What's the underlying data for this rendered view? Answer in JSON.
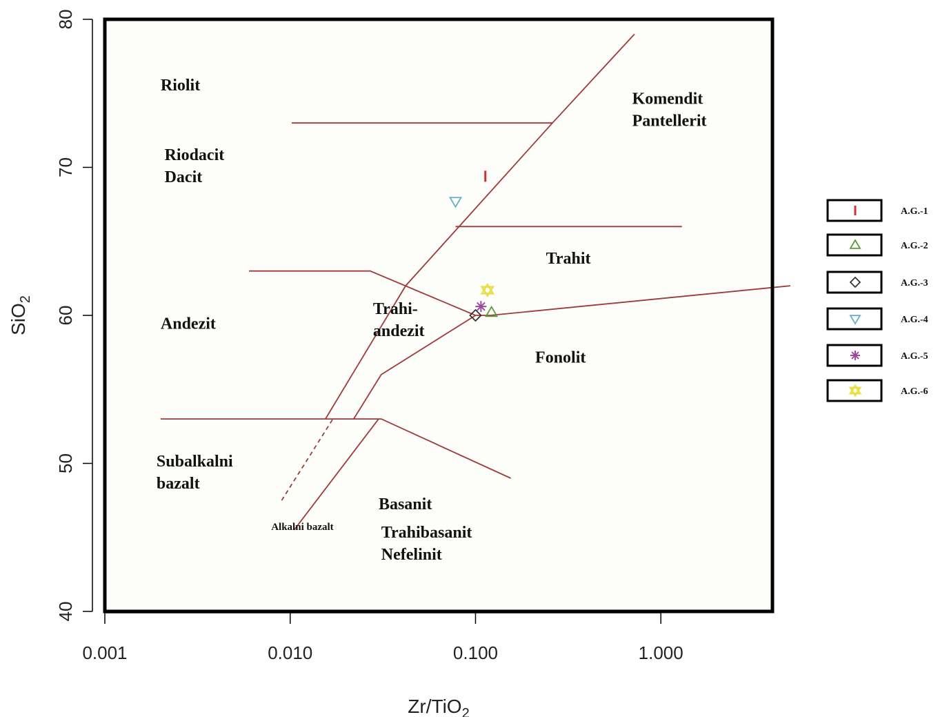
{
  "chart_data": {
    "type": "scatter",
    "title": "",
    "xlabel": "Zr/TiO",
    "xlabel_sub": "2",
    "ylabel": "SiO",
    "ylabel_sub": "2",
    "xscale": "log",
    "xlim": [
      0.001,
      4.0
    ],
    "ylim": [
      40,
      80
    ],
    "x_ticks": [
      {
        "value": 0.001,
        "label": "0.001"
      },
      {
        "value": 0.01,
        "label": "0.010"
      },
      {
        "value": 0.1,
        "label": "0.100"
      },
      {
        "value": 1.0,
        "label": "1.000"
      }
    ],
    "y_ticks": [
      {
        "value": 40,
        "label": "40"
      },
      {
        "value": 50,
        "label": "50"
      },
      {
        "value": 60,
        "label": "60"
      },
      {
        "value": 70,
        "label": "70"
      },
      {
        "value": 80,
        "label": "80"
      }
    ],
    "grid": false,
    "legend_position": "right",
    "line_color": "#9e3a3a",
    "field_boundaries": [
      {
        "style": "solid",
        "points": [
          [
            0.0102,
            73
          ],
          [
            0.26,
            73
          ]
        ]
      },
      {
        "style": "solid",
        "points": [
          [
            0.0155,
            53
          ],
          [
            0.042,
            62
          ],
          [
            0.26,
            73
          ],
          [
            0.72,
            79
          ]
        ]
      },
      {
        "style": "solid",
        "points": [
          [
            0.078,
            66
          ],
          [
            1.3,
            66
          ]
        ]
      },
      {
        "style": "solid",
        "points": [
          [
            0.006,
            63
          ],
          [
            0.027,
            63
          ],
          [
            0.1,
            60
          ]
        ]
      },
      {
        "style": "solid",
        "points": [
          [
            0.002,
            53
          ],
          [
            0.031,
            53
          ],
          [
            0.155,
            49
          ]
        ]
      },
      {
        "style": "solid",
        "points": [
          [
            0.022,
            53
          ],
          [
            0.031,
            56
          ],
          [
            0.1,
            60
          ],
          [
            0.12,
            60
          ],
          [
            5.0,
            62
          ]
        ]
      },
      {
        "style": "solid",
        "points": [
          [
            0.0105,
            45.5
          ],
          [
            0.03,
            53
          ]
        ]
      },
      {
        "style": "dashed",
        "points": [
          [
            0.009,
            47.5
          ],
          [
            0.017,
            53
          ]
        ]
      }
    ],
    "region_labels": [
      {
        "lines": [
          "Riolit"
        ],
        "x": 0.002,
        "y": 75.2
      },
      {
        "lines": [
          "Riodacit",
          "Dacit"
        ],
        "x": 0.0021,
        "y": 70.5
      },
      {
        "lines": [
          "Komendit",
          "Pantellerit"
        ],
        "x": 0.7,
        "y": 74.3
      },
      {
        "lines": [
          "Trahit"
        ],
        "x": 0.24,
        "y": 63.5
      },
      {
        "lines": [
          "Trahi-",
          "andezit"
        ],
        "x": 0.028,
        "y": 60.1
      },
      {
        "lines": [
          "Andezit"
        ],
        "x": 0.002,
        "y": 59.1
      },
      {
        "lines": [
          "Fonolit"
        ],
        "x": 0.21,
        "y": 56.8
      },
      {
        "lines": [
          "Subalkalni",
          "bazalt"
        ],
        "x": 0.0019,
        "y": 49.8
      },
      {
        "lines": [
          "Basanit"
        ],
        "x": 0.03,
        "y": 46.9
      },
      {
        "lines": [
          "Trahibasanit",
          "Nefelinit"
        ],
        "x": 0.031,
        "y": 45.0
      }
    ],
    "small_labels": [
      {
        "text": "Alkalni bazalt",
        "x": 0.0079,
        "y": 45.5
      }
    ],
    "series": [
      {
        "name": "A.G.-1",
        "marker": "bar",
        "color": "#cc3333",
        "points": [
          [
            0.113,
            69.4
          ]
        ]
      },
      {
        "name": "A.G.-2",
        "marker": "triangle-up",
        "color": "#5a9a3a",
        "points": [
          [
            0.122,
            60.2
          ]
        ]
      },
      {
        "name": "A.G.-3",
        "marker": "diamond",
        "color": "#333333",
        "points": [
          [
            0.1,
            60.0
          ]
        ]
      },
      {
        "name": "A.G.-4",
        "marker": "triangle-down",
        "color": "#6aaec6",
        "points": [
          [
            0.078,
            67.7
          ]
        ]
      },
      {
        "name": "A.G.-5",
        "marker": "asterisk",
        "color": "#9b4a9b",
        "points": [
          [
            0.107,
            60.6
          ]
        ]
      },
      {
        "name": "A.G.-6",
        "marker": "star",
        "color": "#e8e04a",
        "points": [
          [
            0.116,
            61.7
          ]
        ]
      }
    ]
  }
}
